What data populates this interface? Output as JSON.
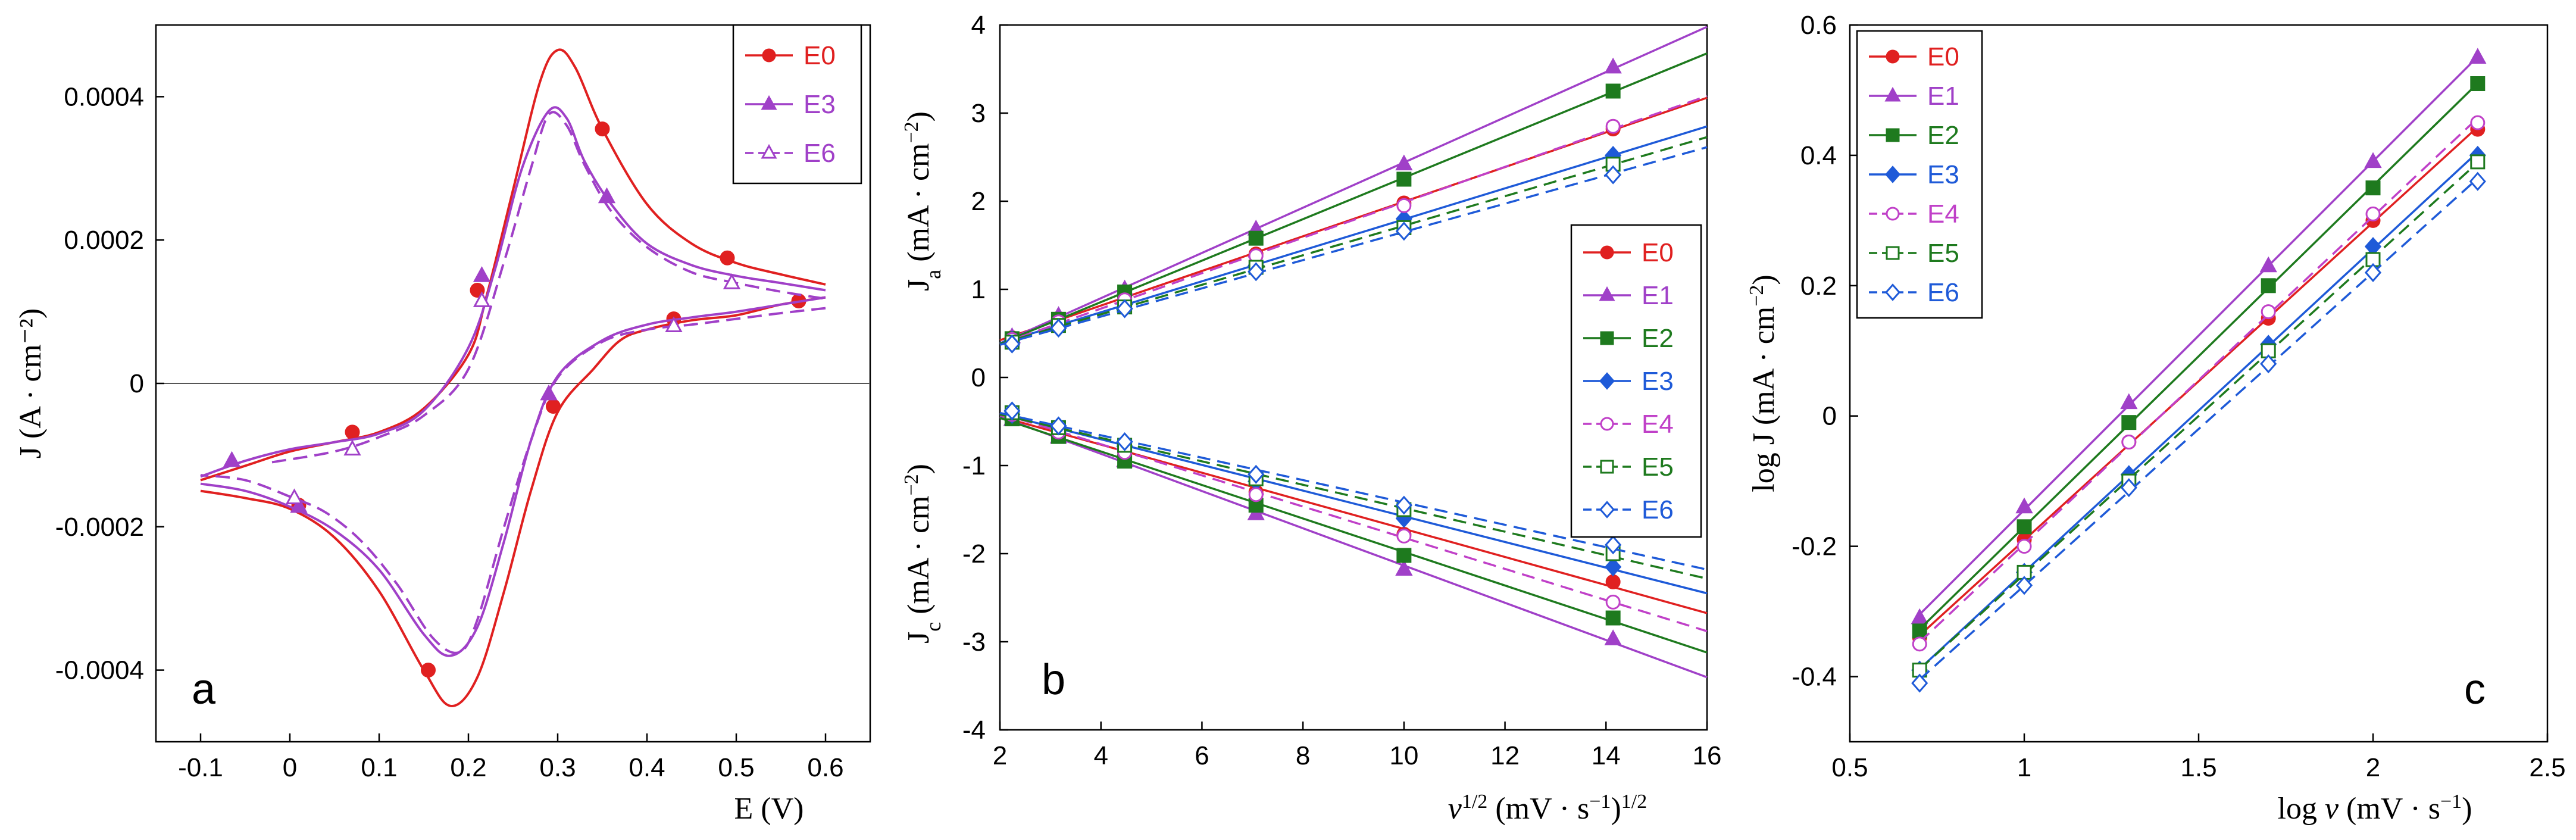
{
  "chart_data": [
    {
      "panel": "a",
      "type": "line",
      "xlabel": "E (V)",
      "ylabel": "J (A · cm⁻²)",
      "xlim": [
        -0.15,
        0.65
      ],
      "ylim": [
        -0.0005,
        0.0005
      ],
      "xticks": [
        -0.1,
        0,
        0.1,
        0.2,
        0.3,
        0.4,
        0.5,
        0.6
      ],
      "xtick_labels": [
        "-0.1",
        "0",
        "0.1",
        "0.2",
        "0.3",
        "0.4",
        "0.5",
        "0.6"
      ],
      "yticks": [
        -0.0004,
        -0.0002,
        0,
        0.0002,
        0.0004
      ],
      "ytick_labels": [
        "-0.0004",
        "-0.0002",
        "0",
        "0.0002",
        "0.0004"
      ],
      "legend_position": "top-right",
      "series": [
        {
          "name": "E0",
          "color": "#e02020",
          "marker": "circle",
          "filled": true,
          "dash": false,
          "forward": [
            [
              -0.1,
              -0.000135
            ],
            [
              -0.05,
              -0.000115
            ],
            [
              0,
              -9.5e-05
            ],
            [
              0.05,
              -8.2e-05
            ],
            [
              0.1,
              -6.8e-05
            ],
            [
              0.15,
              -3.5e-05
            ],
            [
              0.2,
              4e-05
            ],
            [
              0.22,
              0.00012
            ],
            [
              0.25,
              0.00027
            ],
            [
              0.28,
              0.00042
            ],
            [
              0.3,
              0.000465
            ],
            [
              0.32,
              0.00044
            ],
            [
              0.35,
              0.000355
            ],
            [
              0.4,
              0.00025
            ],
            [
              0.45,
              0.000195
            ],
            [
              0.5,
              0.000168
            ],
            [
              0.55,
              0.000152
            ],
            [
              0.6,
              0.000138
            ]
          ],
          "reverse": [
            [
              0.6,
              0.00012
            ],
            [
              0.55,
              0.00011
            ],
            [
              0.5,
              9.5e-05
            ],
            [
              0.45,
              8.8e-05
            ],
            [
              0.4,
              7.5e-05
            ],
            [
              0.37,
              6e-05
            ],
            [
              0.34,
              2e-05
            ],
            [
              0.3,
              -4e-05
            ],
            [
              0.27,
              -0.00015
            ],
            [
              0.24,
              -0.00029
            ],
            [
              0.21,
              -0.00041
            ],
            [
              0.18,
              -0.00045
            ],
            [
              0.15,
              -0.0004
            ],
            [
              0.1,
              -0.00029
            ],
            [
              0.05,
              -0.000215
            ],
            [
              0,
              -0.000175
            ],
            [
              -0.05,
              -0.00016
            ],
            [
              -0.1,
              -0.00015
            ]
          ],
          "markers": [
            [
              0.07,
              -6.8e-05
            ],
            [
              0.21,
              0.00013
            ],
            [
              0.35,
              0.000355
            ],
            [
              0.49,
              0.000175
            ],
            [
              0.57,
              0.000115
            ],
            [
              0.43,
              9e-05
            ],
            [
              0.295,
              -3.2e-05
            ],
            [
              0.155,
              -0.0004
            ],
            [
              0.01,
              -0.00017
            ]
          ]
        },
        {
          "name": "E3",
          "color": "#a040c8",
          "marker": "triangle",
          "filled": true,
          "dash": false,
          "forward": [
            [
              -0.1,
              -0.00013
            ],
            [
              -0.05,
              -0.000108
            ],
            [
              0,
              -9.2e-05
            ],
            [
              0.05,
              -8.2e-05
            ],
            [
              0.1,
              -7e-05
            ],
            [
              0.15,
              -3.8e-05
            ],
            [
              0.2,
              5e-05
            ],
            [
              0.23,
              0.00016
            ],
            [
              0.26,
              0.0003
            ],
            [
              0.29,
              0.00038
            ],
            [
              0.31,
              0.00037
            ],
            [
              0.33,
              0.00031
            ],
            [
              0.36,
              0.00025
            ],
            [
              0.4,
              0.000195
            ],
            [
              0.45,
              0.000165
            ],
            [
              0.5,
              0.00015
            ],
            [
              0.55,
              0.00014
            ],
            [
              0.6,
              0.00013
            ]
          ],
          "reverse": [
            [
              0.6,
              0.00012
            ],
            [
              0.55,
              0.00011
            ],
            [
              0.5,
              0.0001
            ],
            [
              0.45,
              9.2e-05
            ],
            [
              0.4,
              8.2e-05
            ],
            [
              0.35,
              6e-05
            ],
            [
              0.3,
              1e-05
            ],
            [
              0.27,
              -8e-05
            ],
            [
              0.24,
              -0.00022
            ],
            [
              0.21,
              -0.00034
            ],
            [
              0.18,
              -0.00038
            ],
            [
              0.15,
              -0.00035
            ],
            [
              0.1,
              -0.00026
            ],
            [
              0.05,
              -0.000205
            ],
            [
              0,
              -0.000172
            ],
            [
              -0.05,
              -0.00015
            ],
            [
              -0.1,
              -0.00014
            ]
          ],
          "markers": [
            [
              -0.065,
              -0.000108
            ],
            [
              0.215,
              0.00015
            ],
            [
              0.355,
              0.00026
            ],
            [
              0.29,
              -1.5e-05
            ],
            [
              0.01,
              -0.000172
            ]
          ]
        },
        {
          "name": "E6",
          "color": "#a040c8",
          "marker": "triangle",
          "filled": false,
          "dash": true,
          "forward": [
            [
              -0.02,
              -0.00011
            ],
            [
              0.05,
              -9.5e-05
            ],
            [
              0.1,
              -7.5e-05
            ],
            [
              0.15,
              -4.5e-05
            ],
            [
              0.2,
              2e-05
            ],
            [
              0.24,
              0.00017
            ],
            [
              0.27,
              0.0003
            ],
            [
              0.29,
              0.000375
            ],
            [
              0.31,
              0.00036
            ],
            [
              0.33,
              0.000305
            ],
            [
              0.36,
              0.00024
            ],
            [
              0.4,
              0.00019
            ],
            [
              0.45,
              0.000155
            ],
            [
              0.5,
              0.00014
            ],
            [
              0.55,
              0.000128
            ],
            [
              0.6,
              0.000118
            ]
          ],
          "reverse": [
            [
              0.6,
              0.000105
            ],
            [
              0.55,
              9.8e-05
            ],
            [
              0.5,
              9e-05
            ],
            [
              0.45,
              8.2e-05
            ],
            [
              0.4,
              7.5e-05
            ],
            [
              0.35,
              5.8e-05
            ],
            [
              0.3,
              8e-06
            ],
            [
              0.27,
              -8e-05
            ],
            [
              0.24,
              -0.0002
            ],
            [
              0.21,
              -0.00033
            ],
            [
              0.19,
              -0.000375
            ],
            [
              0.16,
              -0.000355
            ],
            [
              0.12,
              -0.00028
            ],
            [
              0.08,
              -0.00022
            ],
            [
              0.04,
              -0.00018
            ],
            [
              0,
              -0.000158
            ],
            [
              -0.05,
              -0.000135
            ],
            [
              -0.1,
              -0.000128
            ]
          ],
          "markers": [
            [
              0.07,
              -9.2e-05
            ],
            [
              0.215,
              0.000115
            ],
            [
              0.495,
              0.00014
            ],
            [
              0.43,
              8e-05
            ],
            [
              0.005,
              -0.00016
            ]
          ]
        }
      ],
      "panel_letter": "a"
    },
    {
      "panel": "b",
      "type": "line",
      "xlabel": "v^{1/2} (mV · s⁻¹)^{1/2}",
      "xlabel_parts": {
        "v": "v",
        "v_sup": "1/2",
        "mid": " (mV · s",
        "s_sup": "−1",
        "close": ")",
        "close_sup": "1/2"
      },
      "ylabel_top": "J_a (mA · cm⁻²)",
      "ylabel_top_parts": {
        "j": "J",
        "sub": "a",
        "mid": " (mA · cm",
        "sup": "−2",
        "end": ")"
      },
      "ylabel_bottom": "J_c (mA · cm⁻²)",
      "ylabel_bottom_parts": {
        "j": "J",
        "sub": "c",
        "mid": " (mA · cm",
        "sup": "−2",
        "end": ")"
      },
      "xlim": [
        2,
        16
      ],
      "ylim": [
        -4,
        4
      ],
      "xticks": [
        2,
        4,
        6,
        8,
        10,
        12,
        14,
        16
      ],
      "xtick_labels": [
        "2",
        "4",
        "6",
        "8",
        "10",
        "12",
        "14",
        "16"
      ],
      "yticks": [
        -4,
        -3,
        -2,
        -1,
        0,
        1,
        2,
        3,
        4
      ],
      "ytick_labels": [
        "-4",
        "-3",
        "-2",
        "-1",
        "0",
        "1",
        "2",
        "3",
        "4"
      ],
      "x": [
        2.24,
        3.16,
        4.47,
        7.07,
        10.0,
        14.14
      ],
      "legend_position": "right-middle",
      "series": [
        {
          "name": "E0",
          "color": "#e02020",
          "marker": "circle",
          "filled": true,
          "dash": false,
          "anodic": [
            0.45,
            0.67,
            0.93,
            1.4,
            1.98,
            2.82
          ],
          "cathodic": [
            -0.45,
            -0.6,
            -0.85,
            -1.3,
            -1.78,
            -2.32
          ]
        },
        {
          "name": "E1",
          "color": "#a040c8",
          "marker": "triangle",
          "filled": true,
          "dash": false,
          "anodic": [
            0.46,
            0.7,
            1.0,
            1.68,
            2.42,
            3.52
          ],
          "cathodic": [
            -0.48,
            -0.68,
            -0.95,
            -1.55,
            -2.18,
            -2.97
          ]
        },
        {
          "name": "E2",
          "color": "#1e7a1e",
          "marker": "square",
          "filled": true,
          "dash": false,
          "anodic": [
            0.44,
            0.66,
            0.97,
            1.58,
            2.25,
            3.25
          ],
          "cathodic": [
            -0.47,
            -0.67,
            -0.95,
            -1.45,
            -2.02,
            -2.73
          ]
        },
        {
          "name": "E3",
          "color": "#1e5ad8",
          "marker": "diamond",
          "filled": true,
          "dash": false,
          "anodic": [
            0.42,
            0.6,
            0.83,
            1.27,
            1.8,
            2.52
          ],
          "cathodic": [
            -0.42,
            -0.57,
            -0.78,
            -1.18,
            -1.6,
            -2.15
          ]
        },
        {
          "name": "E4",
          "color": "#c040c8",
          "marker": "circle",
          "filled": false,
          "dash": true,
          "anodic": [
            0.43,
            0.63,
            0.88,
            1.38,
            1.95,
            2.85
          ],
          "cathodic": [
            -0.42,
            -0.62,
            -0.85,
            -1.33,
            -1.8,
            -2.55
          ]
        },
        {
          "name": "E5",
          "color": "#1e7a1e",
          "marker": "square",
          "filled": false,
          "dash": true,
          "anodic": [
            0.4,
            0.59,
            0.8,
            1.25,
            1.7,
            2.42
          ],
          "cathodic": [
            -0.4,
            -0.57,
            -0.77,
            -1.15,
            -1.5,
            -2.0
          ]
        },
        {
          "name": "E6",
          "color": "#1e5ad8",
          "marker": "diamond",
          "filled": false,
          "dash": true,
          "anodic": [
            0.38,
            0.56,
            0.78,
            1.2,
            1.66,
            2.3
          ],
          "cathodic": [
            -0.38,
            -0.55,
            -0.73,
            -1.1,
            -1.45,
            -1.9
          ]
        }
      ],
      "panel_letter": "b"
    },
    {
      "panel": "c",
      "type": "line",
      "xlabel": "log v (mV · s⁻¹)",
      "xlabel_parts": {
        "pre": "log ",
        "v": "v",
        "mid": " (mV · s",
        "sup": "−1",
        "end": ")"
      },
      "ylabel": "log J (mA · cm⁻²)",
      "ylabel_parts": {
        "pre": "log J (mA · cm",
        "sup": "−2",
        "end": ")"
      },
      "xlim": [
        0.5,
        2.5
      ],
      "ylim": [
        -0.5,
        0.6
      ],
      "xticks": [
        0.5,
        1,
        1.5,
        2,
        2.5
      ],
      "xtick_labels": [
        "0.5",
        "1",
        "1.5",
        "2",
        "2.5"
      ],
      "yticks": [
        -0.4,
        -0.2,
        0,
        0.2,
        0.4,
        0.6
      ],
      "ytick_labels": [
        "-0.4",
        "-0.2",
        "0",
        "0.2",
        "0.4",
        "0.6"
      ],
      "x": [
        0.7,
        1.0,
        1.3,
        1.7,
        2.0,
        2.3
      ],
      "legend_position": "top-left",
      "series": [
        {
          "name": "E0",
          "color": "#e02020",
          "marker": "circle",
          "filled": true,
          "dash": false,
          "values": [
            -0.34,
            -0.19,
            -0.04,
            0.15,
            0.3,
            0.44
          ]
        },
        {
          "name": "E1",
          "color": "#a040c8",
          "marker": "triangle",
          "filled": true,
          "dash": false,
          "values": [
            -0.31,
            -0.14,
            0.02,
            0.23,
            0.39,
            0.55
          ]
        },
        {
          "name": "E2",
          "color": "#1e7a1e",
          "marker": "square",
          "filled": true,
          "dash": false,
          "values": [
            -0.33,
            -0.17,
            -0.01,
            0.2,
            0.35,
            0.51
          ]
        },
        {
          "name": "E3",
          "color": "#1e5ad8",
          "marker": "diamond",
          "filled": true,
          "dash": false,
          "values": [
            -0.39,
            -0.24,
            -0.09,
            0.11,
            0.26,
            0.4
          ]
        },
        {
          "name": "E4",
          "color": "#c040c8",
          "marker": "circle",
          "filled": false,
          "dash": true,
          "values": [
            -0.35,
            -0.2,
            -0.04,
            0.16,
            0.31,
            0.45
          ]
        },
        {
          "name": "E5",
          "color": "#1e7a1e",
          "marker": "square",
          "filled": false,
          "dash": true,
          "values": [
            -0.39,
            -0.24,
            -0.1,
            0.1,
            0.24,
            0.39
          ]
        },
        {
          "name": "E6",
          "color": "#1e5ad8",
          "marker": "diamond",
          "filled": false,
          "dash": true,
          "values": [
            -0.41,
            -0.26,
            -0.11,
            0.08,
            0.22,
            0.36
          ]
        }
      ],
      "panel_letter": "c"
    }
  ]
}
